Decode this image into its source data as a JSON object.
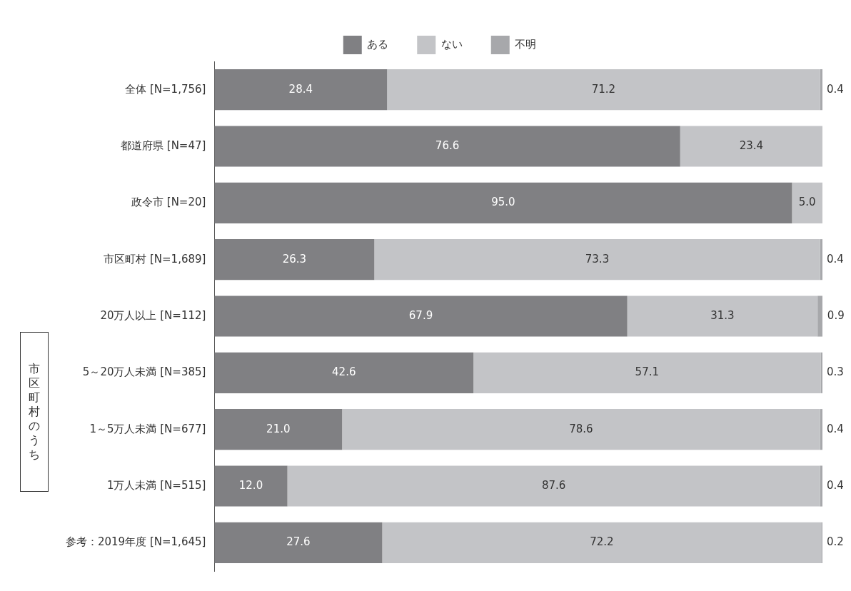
{
  "chart_data": {
    "type": "bar",
    "orientation": "horizontal",
    "stacked": true,
    "categories": [
      "全体 [N=1,756]",
      "都道府県 [N=47]",
      "政令市 [N=20]",
      "市区町村 [N=1,689]",
      "20万人以上 [N=112]",
      "5～20万人未満 [N=385]",
      "1～5万人未満 [N=677]",
      "1万人未満 [N=515]",
      "参考：2019年度 [N=1,645]"
    ],
    "series": [
      {
        "name": "ある",
        "color": "#808083",
        "values": [
          28.4,
          76.6,
          95,
          26.3,
          67.9,
          42.6,
          21,
          12,
          27.6
        ],
        "value_labels": [
          "28.4",
          "76.6",
          "95.0",
          "26.3",
          "67.9",
          "42.6",
          "21.0",
          "12.0",
          "27.6"
        ]
      },
      {
        "name": "ない",
        "color": "#c3c4c7",
        "values": [
          71.2,
          23.4,
          5,
          73.3,
          31.3,
          57.1,
          78.6,
          87.6,
          72.2
        ],
        "value_labels": [
          "71.2",
          "23.4",
          "5.0",
          "73.3",
          "31.3",
          "57.1",
          "78.6",
          "87.6",
          "72.2"
        ]
      },
      {
        "name": "不明",
        "color": "#a7a8ab",
        "values": [
          0.4,
          null,
          null,
          0.4,
          0.9,
          0.3,
          0.4,
          0.4,
          0.2
        ],
        "value_labels": [
          "0.4",
          null,
          null,
          "0.4",
          "0.9",
          "0.3",
          "0.4",
          "0.4",
          "0.2"
        ]
      }
    ],
    "xlim": [
      0,
      100
    ],
    "tick_labels": "y",
    "legend": "top",
    "annotations": [
      "市区町村のうち"
    ]
  }
}
